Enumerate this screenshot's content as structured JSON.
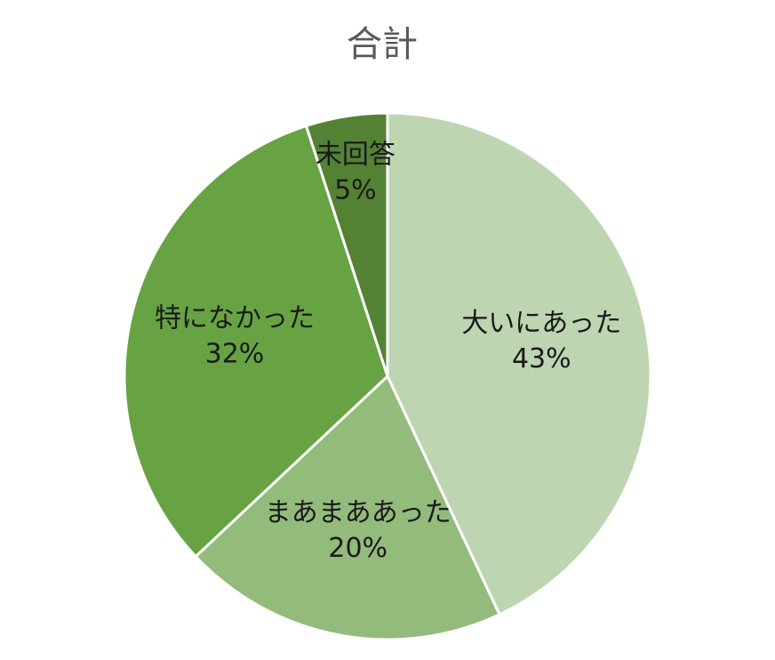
{
  "chart_data": {
    "type": "pie",
    "title": "合計",
    "categories": [
      "大いにあった",
      "まあまああった",
      "特になかった",
      "未回答"
    ],
    "values": [
      43,
      20,
      32,
      5
    ],
    "value_labels": [
      "43%",
      "20%",
      "32%",
      "5%"
    ],
    "colors": [
      "#bed5b2",
      "#93bb7b",
      "#67a343",
      "#548235"
    ]
  }
}
